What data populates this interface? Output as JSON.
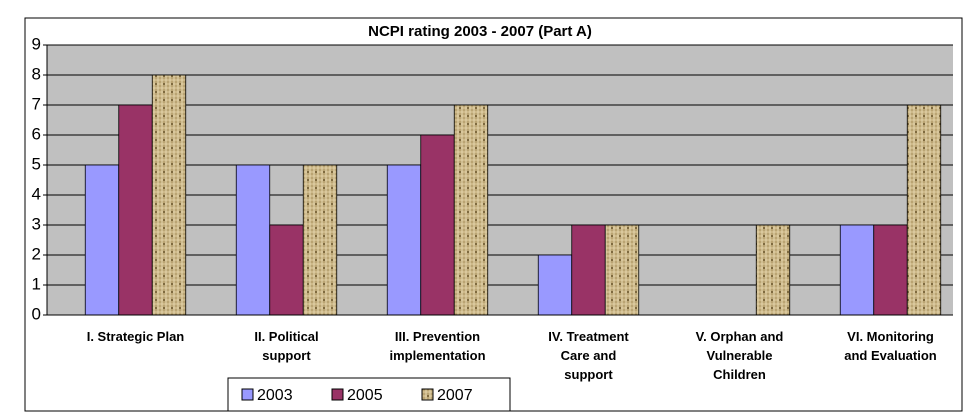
{
  "chart_data": {
    "type": "bar",
    "title": "NCPI rating 2003 - 2007 (Part A)",
    "categories": [
      "I. Strategic Plan",
      "II. Political\nsupport",
      "III. Prevention\nimplementation",
      "IV. Treatment\nCare and\nsupport",
      "V. Orphan and\nVulnerable\nChildren",
      "VI. Monitoring\nand Evaluation"
    ],
    "series": [
      {
        "name": "2003",
        "color": "#9999ff",
        "values": [
          5,
          5,
          5,
          2,
          null,
          3
        ]
      },
      {
        "name": "2005",
        "color": "#993366",
        "values": [
          7,
          3,
          6,
          3,
          null,
          3
        ]
      },
      {
        "name": "2007",
        "color": "#cdb98a",
        "values": [
          8,
          5,
          7,
          3,
          3,
          7
        ]
      }
    ],
    "ylim": [
      0,
      9
    ],
    "yticks": [
      0,
      1,
      2,
      3,
      4,
      5,
      6,
      7,
      8,
      9
    ],
    "grid": true,
    "legend": "bottom"
  }
}
